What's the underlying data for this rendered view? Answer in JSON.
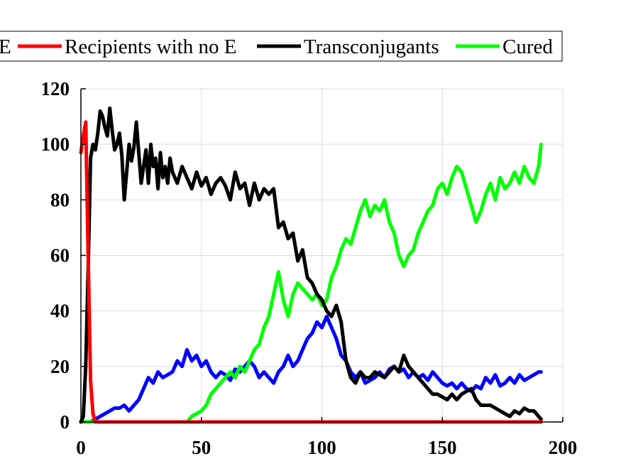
{
  "chart_data": {
    "type": "line",
    "title": "",
    "xlabel": "",
    "ylabel": "",
    "xlim": [
      0,
      200
    ],
    "ylim": [
      0,
      120
    ],
    "xticks": [
      0,
      50,
      100,
      150,
      200
    ],
    "yticks": [
      0,
      20,
      40,
      60,
      80,
      100,
      120
    ],
    "x_tick_labels": [
      "0",
      "50",
      "100",
      "150",
      "200"
    ],
    "y_tick_labels": [
      "0",
      "20",
      "40",
      "60",
      "80",
      "100",
      "120"
    ],
    "grid": true,
    "legend_position": "top",
    "legend": [
      {
        "label": "E",
        "color": "#0000ff",
        "truncated": true
      },
      {
        "label": "Recipients with no E",
        "color": "#ff0000"
      },
      {
        "label": "Transconjugants",
        "color": "#000000"
      },
      {
        "label": "Cured",
        "color": "#00ff00"
      }
    ],
    "series": [
      {
        "color": "#ff0000",
        "x": [
          0,
          1,
          2,
          3,
          4,
          5,
          6,
          8,
          10,
          20,
          40,
          60,
          80,
          100,
          120,
          140,
          160,
          180,
          191
        ],
        "y": [
          97,
          103,
          108,
          60,
          15,
          3,
          0,
          0,
          0,
          0,
          0,
          0,
          0,
          0,
          0,
          0,
          0,
          0,
          0
        ]
      },
      {
        "color": "#000000",
        "x": [
          0,
          1,
          2,
          3,
          4,
          5,
          6,
          7,
          8,
          9,
          10,
          11,
          12,
          13,
          14,
          15,
          16,
          17,
          18,
          19,
          20,
          21,
          22,
          23,
          24,
          25,
          26,
          27,
          28,
          29,
          30,
          31,
          32,
          33,
          34,
          35,
          36,
          37,
          38,
          40,
          42,
          44,
          46,
          48,
          50,
          52,
          54,
          56,
          58,
          60,
          62,
          64,
          66,
          68,
          70,
          72,
          74,
          76,
          78,
          80,
          82,
          84,
          86,
          88,
          90,
          92,
          94,
          96,
          98,
          100,
          102,
          104,
          106,
          108,
          110,
          112,
          114,
          116,
          118,
          120,
          122,
          124,
          126,
          128,
          130,
          132,
          134,
          136,
          138,
          140,
          142,
          144,
          146,
          148,
          150,
          152,
          154,
          156,
          158,
          160,
          162,
          164,
          166,
          168,
          170,
          172,
          174,
          176,
          178,
          180,
          182,
          184,
          186,
          188,
          190,
          191
        ],
        "y": [
          0,
          2,
          20,
          55,
          95,
          100,
          98,
          104,
          112,
          110,
          106,
          103,
          113,
          105,
          98,
          100,
          104,
          96,
          80,
          90,
          100,
          94,
          99,
          108,
          97,
          86,
          92,
          98,
          86,
          100,
          92,
          95,
          84,
          97,
          88,
          92,
          86,
          95,
          90,
          86,
          92,
          88,
          84,
          90,
          85,
          88,
          82,
          86,
          88,
          85,
          80,
          90,
          84,
          86,
          78,
          86,
          80,
          84,
          82,
          84,
          70,
          72,
          66,
          68,
          58,
          62,
          52,
          50,
          46,
          44,
          40,
          38,
          42,
          36,
          22,
          16,
          14,
          18,
          16,
          16,
          18,
          17,
          16,
          18,
          20,
          18,
          24,
          20,
          18,
          16,
          14,
          12,
          10,
          10,
          9,
          8,
          10,
          8,
          10,
          11,
          12,
          8,
          6,
          6,
          6,
          5,
          4,
          3,
          2,
          4,
          3,
          5,
          4,
          4,
          2,
          1
        ]
      },
      {
        "color": "#0000ff",
        "x": [
          0,
          2,
          4,
          6,
          8,
          10,
          12,
          14,
          16,
          18,
          20,
          22,
          24,
          26,
          28,
          30,
          32,
          34,
          36,
          38,
          40,
          42,
          44,
          46,
          48,
          50,
          52,
          54,
          56,
          58,
          60,
          62,
          64,
          66,
          68,
          70,
          72,
          74,
          76,
          78,
          80,
          82,
          84,
          86,
          88,
          90,
          92,
          94,
          96,
          98,
          100,
          102,
          104,
          106,
          108,
          110,
          112,
          114,
          116,
          118,
          120,
          122,
          124,
          126,
          128,
          130,
          132,
          134,
          136,
          138,
          140,
          142,
          144,
          146,
          148,
          150,
          152,
          154,
          156,
          158,
          160,
          162,
          164,
          166,
          168,
          170,
          172,
          174,
          176,
          178,
          180,
          182,
          184,
          186,
          188,
          190,
          191
        ],
        "y": [
          0,
          0,
          0,
          1,
          2,
          3,
          4,
          5,
          5,
          6,
          4,
          6,
          8,
          12,
          16,
          14,
          18,
          16,
          17,
          18,
          22,
          20,
          26,
          22,
          24,
          20,
          22,
          18,
          16,
          18,
          17,
          15,
          19,
          18,
          20,
          22,
          20,
          16,
          18,
          16,
          14,
          18,
          20,
          24,
          20,
          22,
          26,
          30,
          32,
          36,
          34,
          38,
          34,
          30,
          24,
          22,
          18,
          16,
          18,
          14,
          15,
          16,
          18,
          16,
          19,
          20,
          18,
          19,
          16,
          18,
          16,
          17,
          15,
          18,
          16,
          14,
          13,
          14,
          12,
          14,
          12,
          11,
          13,
          12,
          16,
          14,
          17,
          13,
          14,
          16,
          14,
          17,
          15,
          16,
          17,
          18,
          18
        ]
      },
      {
        "color": "#00ff00",
        "x": [
          0,
          10,
          20,
          30,
          40,
          42,
          44,
          46,
          48,
          50,
          52,
          54,
          56,
          58,
          60,
          62,
          64,
          66,
          68,
          70,
          72,
          74,
          76,
          78,
          80,
          82,
          84,
          86,
          88,
          90,
          92,
          94,
          96,
          98,
          100,
          102,
          104,
          106,
          108,
          110,
          112,
          114,
          116,
          118,
          120,
          122,
          124,
          126,
          128,
          130,
          132,
          134,
          136,
          138,
          140,
          142,
          144,
          146,
          148,
          150,
          152,
          154,
          156,
          158,
          160,
          162,
          164,
          166,
          168,
          170,
          172,
          174,
          176,
          178,
          180,
          182,
          184,
          186,
          188,
          190,
          191
        ],
        "y": [
          0,
          0,
          0,
          0,
          0,
          0,
          0,
          2,
          3,
          4,
          6,
          10,
          12,
          14,
          16,
          18,
          16,
          20,
          18,
          22,
          26,
          28,
          34,
          38,
          46,
          54,
          44,
          38,
          46,
          50,
          48,
          46,
          44,
          46,
          42,
          44,
          52,
          56,
          62,
          66,
          64,
          70,
          76,
          80,
          74,
          78,
          76,
          80,
          72,
          68,
          60,
          56,
          60,
          62,
          68,
          72,
          76,
          78,
          84,
          86,
          82,
          88,
          92,
          90,
          84,
          78,
          72,
          76,
          82,
          86,
          80,
          88,
          84,
          86,
          90,
          86,
          92,
          88,
          86,
          92,
          100
        ]
      }
    ]
  }
}
